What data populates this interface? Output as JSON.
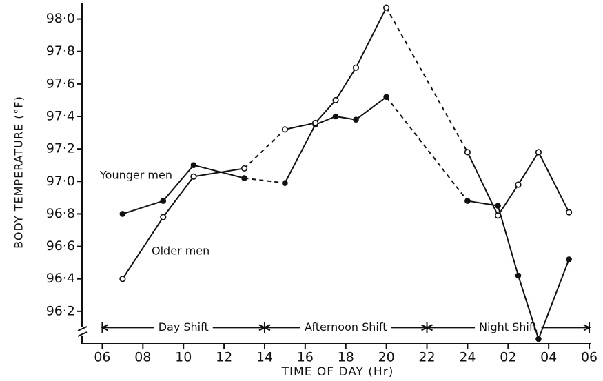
{
  "chart_data": {
    "type": "line",
    "x_label": "TIME OF DAY (Hr)",
    "y_label": "BODY TEMPERATURE (°F)",
    "x": [
      7,
      9,
      10.5,
      13,
      15,
      16.5,
      17.5,
      18.5,
      20,
      24,
      25.5,
      26.5,
      27.5,
      29
    ],
    "series": [
      {
        "name": "Younger men",
        "color": "#111111",
        "marker": "filled",
        "values": [
          96.8,
          96.88,
          97.1,
          97.02,
          96.99,
          97.35,
          97.4,
          97.38,
          97.52,
          96.88,
          96.85,
          96.42,
          96.03,
          96.52
        ]
      },
      {
        "name": "Older men",
        "color": "#111111",
        "marker": "open",
        "values": [
          96.4,
          96.78,
          97.03,
          97.08,
          97.32,
          97.36,
          97.5,
          97.7,
          98.07,
          97.18,
          96.79,
          96.98,
          97.18,
          96.81
        ]
      }
    ],
    "dashed_between": [
      [
        13,
        15
      ],
      [
        20,
        24
      ]
    ],
    "shifts": [
      {
        "label": "Day Shift",
        "start": 6,
        "end": 14
      },
      {
        "label": "Afternoon Shift",
        "start": 14,
        "end": 22
      },
      {
        "label": "Night Shift",
        "start": 22,
        "end": 30
      }
    ],
    "shift_level": 96.1,
    "xlim": [
      5,
      30.1
    ],
    "ylim": [
      96.0,
      98.1
    ],
    "xticks": [
      {
        "value": 6,
        "label": "06"
      },
      {
        "value": 8,
        "label": "08"
      },
      10,
      12,
      14,
      16,
      18,
      20,
      22,
      24,
      {
        "value": 26,
        "label": "02"
      },
      {
        "value": 28,
        "label": "04"
      },
      {
        "value": 30,
        "label": "06"
      }
    ],
    "yticks": [
      {
        "value": 96.2,
        "label": "96·2"
      },
      {
        "value": 96.4,
        "label": "96·4"
      },
      {
        "value": 96.6,
        "label": "96·6"
      },
      {
        "value": 96.8,
        "label": "96·8"
      },
      {
        "value": 97.0,
        "label": "97·0"
      },
      {
        "value": 97.2,
        "label": "97·2"
      },
      {
        "value": 97.4,
        "label": "97·4"
      },
      {
        "value": 97.6,
        "label": "97·6"
      },
      {
        "value": 97.8,
        "label": "97·8"
      },
      {
        "value": 98.0,
        "label": "98·0"
      }
    ],
    "grid": false
  }
}
